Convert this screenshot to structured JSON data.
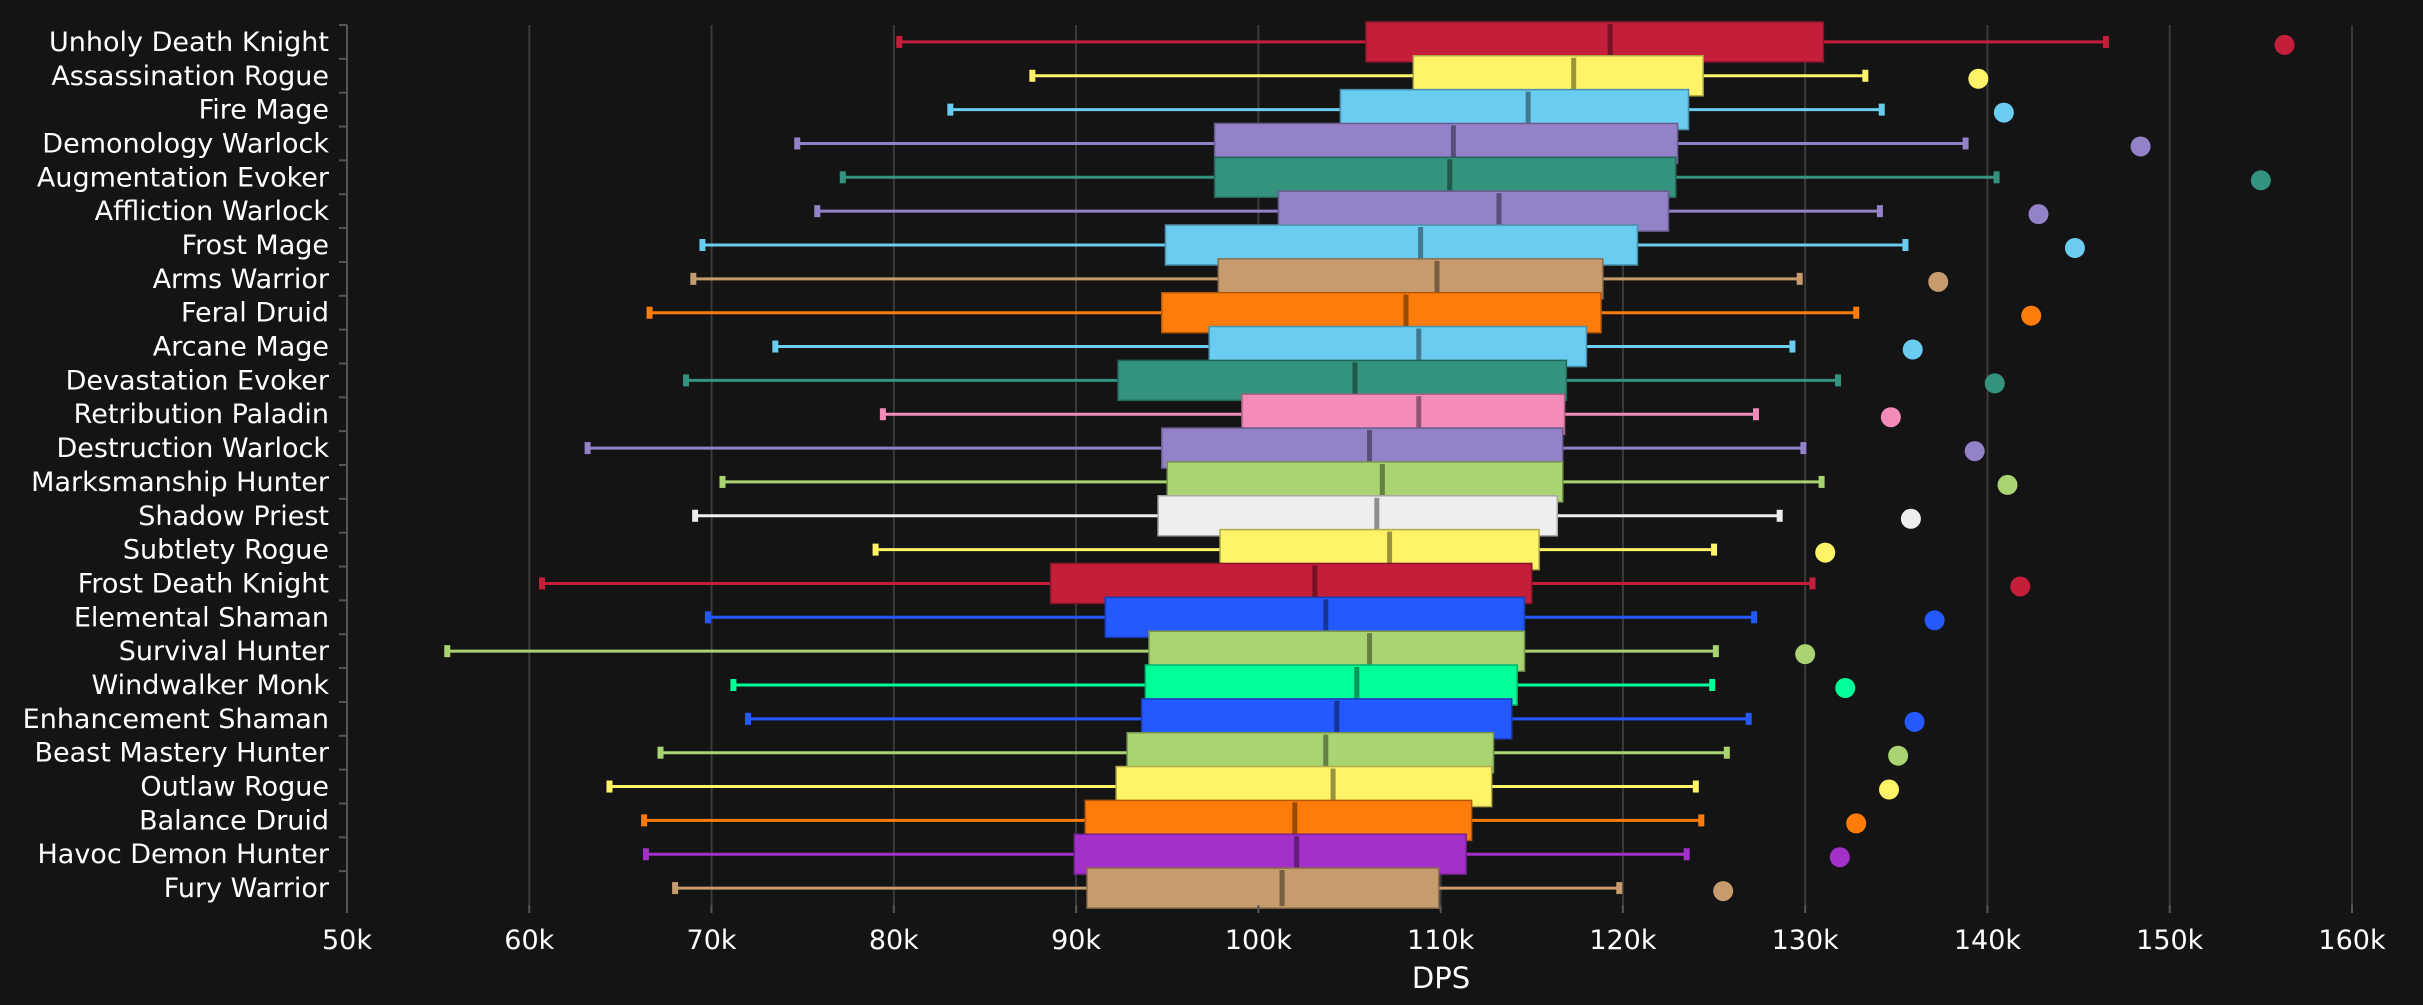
{
  "chart_data": {
    "type": "boxplot",
    "title": "",
    "xlabel": "DPS",
    "ylabel": "",
    "xlim": [
      50000,
      160000
    ],
    "x_ticks": [
      50000,
      60000,
      70000,
      80000,
      90000,
      100000,
      110000,
      120000,
      130000,
      140000,
      150000,
      160000
    ],
    "x_tick_labels": [
      "50k",
      "60k",
      "70k",
      "80k",
      "90k",
      "100k",
      "110k",
      "120k",
      "130k",
      "140k",
      "150k",
      "160k"
    ],
    "grid": "vertical",
    "background": "#141414",
    "series": [
      {
        "name": "Unholy Death Knight",
        "color": "#C41E3A",
        "whisker_low": 80300,
        "q1": 105900,
        "median": 119300,
        "q3": 131000,
        "whisker_high": 146500,
        "outlier": 156300
      },
      {
        "name": "Assassination Rogue",
        "color": "#FFF468",
        "whisker_low": 87600,
        "q1": 108500,
        "median": 117300,
        "q3": 124400,
        "whisker_high": 133300,
        "outlier": 139500
      },
      {
        "name": "Fire Mage",
        "color": "#69CCF0",
        "whisker_low": 83100,
        "q1": 104500,
        "median": 114800,
        "q3": 123600,
        "whisker_high": 134200,
        "outlier": 140900
      },
      {
        "name": "Demonology Warlock",
        "color": "#9482C9",
        "whisker_low": 74700,
        "q1": 97600,
        "median": 110700,
        "q3": 123000,
        "whisker_high": 138800,
        "outlier": 148400
      },
      {
        "name": "Augmentation Evoker",
        "color": "#33937F",
        "whisker_low": 77200,
        "q1": 97600,
        "median": 110500,
        "q3": 122900,
        "whisker_high": 140500,
        "outlier": 155000
      },
      {
        "name": "Affliction Warlock",
        "color": "#9482C9",
        "whisker_low": 75800,
        "q1": 101100,
        "median": 113200,
        "q3": 122500,
        "whisker_high": 134100,
        "outlier": 142800
      },
      {
        "name": "Frost Mage",
        "color": "#69CCF0",
        "whisker_low": 69500,
        "q1": 94900,
        "median": 108900,
        "q3": 120800,
        "whisker_high": 135500,
        "outlier": 144800
      },
      {
        "name": "Arms Warrior",
        "color": "#C69B6D",
        "whisker_low": 69000,
        "q1": 97800,
        "median": 109800,
        "q3": 118900,
        "whisker_high": 129700,
        "outlier": 137300
      },
      {
        "name": "Feral Druid",
        "color": "#FF7C0A",
        "whisker_low": 66600,
        "q1": 94700,
        "median": 108100,
        "q3": 118800,
        "whisker_high": 132800,
        "outlier": 142400
      },
      {
        "name": "Arcane Mage",
        "color": "#69CCF0",
        "whisker_low": 73500,
        "q1": 97300,
        "median": 108800,
        "q3": 118000,
        "whisker_high": 129300,
        "outlier": 135900
      },
      {
        "name": "Devastation Evoker",
        "color": "#33937F",
        "whisker_low": 68600,
        "q1": 92300,
        "median": 105300,
        "q3": 116900,
        "whisker_high": 131800,
        "outlier": 140400
      },
      {
        "name": "Retribution Paladin",
        "color": "#F48CBA",
        "whisker_low": 79400,
        "q1": 99100,
        "median": 108800,
        "q3": 116800,
        "whisker_high": 127300,
        "outlier": 134700
      },
      {
        "name": "Destruction Warlock",
        "color": "#9482C9",
        "whisker_low": 63200,
        "q1": 94700,
        "median": 106100,
        "q3": 116700,
        "whisker_high": 129900,
        "outlier": 139300
      },
      {
        "name": "Marksmanship Hunter",
        "color": "#AAD372",
        "whisker_low": 70600,
        "q1": 95000,
        "median": 106800,
        "q3": 116700,
        "whisker_high": 130900,
        "outlier": 141100
      },
      {
        "name": "Shadow Priest",
        "color": "#EEEEEE",
        "whisker_low": 69100,
        "q1": 94500,
        "median": 106500,
        "q3": 116400,
        "whisker_high": 128600,
        "outlier": 135800
      },
      {
        "name": "Subtlety Rogue",
        "color": "#FFF468",
        "whisker_low": 79000,
        "q1": 97900,
        "median": 107200,
        "q3": 115400,
        "whisker_high": 125000,
        "outlier": 131100
      },
      {
        "name": "Frost Death Knight",
        "color": "#C41E3A",
        "whisker_low": 60700,
        "q1": 88600,
        "median": 103100,
        "q3": 115000,
        "whisker_high": 130400,
        "outlier": 141800
      },
      {
        "name": "Elemental Shaman",
        "color": "#2459FF",
        "whisker_low": 69800,
        "q1": 91600,
        "median": 103700,
        "q3": 114600,
        "whisker_high": 127200,
        "outlier": 137100
      },
      {
        "name": "Survival Hunter",
        "color": "#AAD372",
        "whisker_low": 55500,
        "q1": 94000,
        "median": 106100,
        "q3": 114600,
        "whisker_high": 125100,
        "outlier": 130000
      },
      {
        "name": "Windwalker Monk",
        "color": "#00FF98",
        "whisker_low": 71200,
        "q1": 93800,
        "median": 105400,
        "q3": 114200,
        "whisker_high": 124900,
        "outlier": 132200
      },
      {
        "name": "Enhancement Shaman",
        "color": "#2459FF",
        "whisker_low": 72000,
        "q1": 93600,
        "median": 104300,
        "q3": 113900,
        "whisker_high": 126900,
        "outlier": 136000
      },
      {
        "name": "Beast Mastery Hunter",
        "color": "#AAD372",
        "whisker_low": 67200,
        "q1": 92800,
        "median": 103700,
        "q3": 112900,
        "whisker_high": 125700,
        "outlier": 135100
      },
      {
        "name": "Outlaw Rogue",
        "color": "#FFF468",
        "whisker_low": 64400,
        "q1": 92200,
        "median": 104100,
        "q3": 112800,
        "whisker_high": 124000,
        "outlier": 134600
      },
      {
        "name": "Balance Druid",
        "color": "#FF7C0A",
        "whisker_low": 66300,
        "q1": 90500,
        "median": 102000,
        "q3": 111700,
        "whisker_high": 124300,
        "outlier": 132800
      },
      {
        "name": "Havoc Demon Hunter",
        "color": "#A330C9",
        "whisker_low": 66400,
        "q1": 89900,
        "median": 102100,
        "q3": 111400,
        "whisker_high": 123500,
        "outlier": 131900
      },
      {
        "name": "Fury Warrior",
        "color": "#C69B6D",
        "whisker_low": 68000,
        "q1": 90600,
        "median": 101300,
        "q3": 109900,
        "whisker_high": 119800,
        "outlier": 125500
      }
    ]
  }
}
